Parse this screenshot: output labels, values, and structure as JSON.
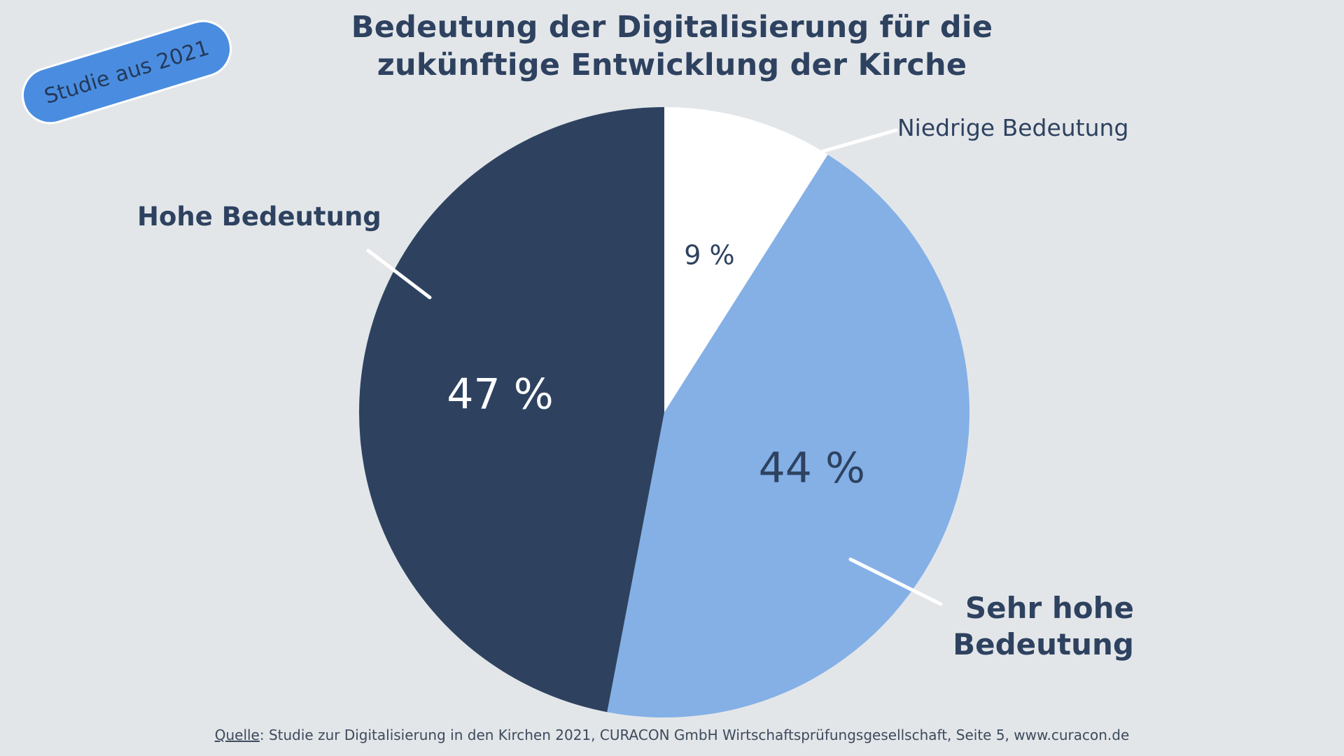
{
  "badge": {
    "text": "Studie aus 2021"
  },
  "title": {
    "line1": "Bedeutung der Digitalisierung für die",
    "line2": "zukünftige Entwicklung der Kirche"
  },
  "colors": {
    "background": "#e3e6e9",
    "text": "#2e4260",
    "badge": "#4a8de0",
    "slice_low": "#ffffff",
    "slice_very_high": "#84b0e6",
    "slice_high": "#2e4260"
  },
  "source": {
    "label": "Quelle",
    "text": ": Studie zur Digitalisierung in den Kirchen 2021, CURACON GmbH Wirtschaftsprüfungsgesellschaft, Seite 5, www.curacon.de"
  },
  "chart_data": {
    "type": "pie",
    "title": "Bedeutung der Digitalisierung für die zukünftige Entwicklung der Kirche",
    "start": "top",
    "direction": "clockwise",
    "slices": [
      {
        "label": "Niedrige Bedeutung",
        "value": 9,
        "value_label": "9 %",
        "color": "#ffffff",
        "text_color": "#2e4260"
      },
      {
        "label": "Sehr hohe Bedeutung",
        "value": 44,
        "value_label": "44 %",
        "color": "#84b0e6",
        "text_color": "#2e4260"
      },
      {
        "label": "Hohe Bedeutung",
        "value": 47,
        "value_label": "47 %",
        "color": "#2e4260",
        "text_color": "#ffffff"
      }
    ],
    "unit": "%"
  }
}
